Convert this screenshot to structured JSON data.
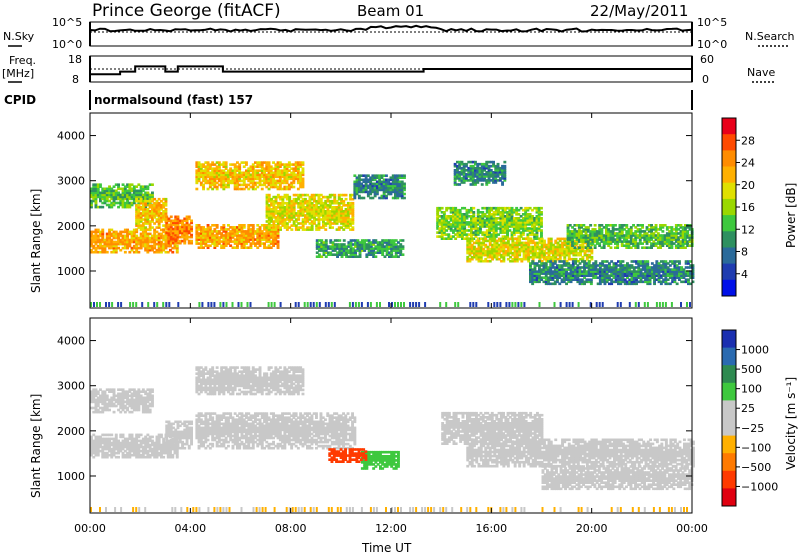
{
  "header": {
    "station": "Prince George (fitACF)",
    "beam": "Beam 01",
    "date": "22/May/2011"
  },
  "top_panels": {
    "nsky_label": "N.Sky",
    "nsearch_label": "N.Search",
    "freq_label": "Freq.",
    "freq_unit": "[MHz]",
    "nave_label": "Nave",
    "cpid_label": "CPID",
    "cpid_text": "normalsound (fast) 157",
    "noise_ticks": [
      "10^5",
      "10^0"
    ],
    "noise_right_ticks": [
      "10^5",
      "10^0"
    ],
    "freq_ticks": [
      "18",
      "8"
    ],
    "nave_ticks": [
      "60",
      "0"
    ]
  },
  "colorbars": {
    "power": {
      "title": "Power [dB]",
      "ticks": [
        "28",
        "24",
        "20",
        "16",
        "12",
        "8",
        "4"
      ],
      "colors": [
        "#e8001a",
        "#ff4a00",
        "#ff8c00",
        "#ffb000",
        "#e0e000",
        "#9ad800",
        "#3ec83e",
        "#2e9060",
        "#2a6a9a",
        "#1f3cb0",
        "#0010e8"
      ]
    },
    "velocity": {
      "title": "Velocity [m s⁻¹]",
      "ticks": [
        "1000",
        "500",
        "100",
        "25",
        "−25",
        "−100",
        "−500",
        "−1000"
      ],
      "colors": [
        "#1a2fb0",
        "#2a6ab0",
        "#2e8a50",
        "#3ec83e",
        "#c8c8c8",
        "#c8c8c8",
        "#ffb000",
        "#ff7a00",
        "#ff3a00",
        "#e00010"
      ]
    }
  },
  "chart_data": {
    "type": "heatmap",
    "xlabel": "Time UT",
    "ylabel": "Slant Range [km]",
    "x_ticks": [
      "00:00",
      "04:00",
      "08:00",
      "12:00",
      "16:00",
      "20:00",
      "00:00"
    ],
    "xlim_hours": [
      0,
      24
    ],
    "y_ticks": [
      "4000",
      "3000",
      "2000",
      "1000"
    ],
    "ylim_km": [
      180,
      4500
    ],
    "panels": [
      {
        "name": "power",
        "bands": [
          {
            "t0": 0.0,
            "t1": 3.5,
            "r0": 1400,
            "r1": 1900,
            "level": 22
          },
          {
            "t0": 0.0,
            "t1": 2.5,
            "r0": 2400,
            "r1": 2900,
            "level": 12
          },
          {
            "t0": 1.8,
            "t1": 3.0,
            "r0": 1900,
            "r1": 2600,
            "level": 20
          },
          {
            "t0": 3.0,
            "t1": 4.0,
            "r0": 1600,
            "r1": 2200,
            "level": 24
          },
          {
            "t0": 4.2,
            "t1": 7.5,
            "r0": 1500,
            "r1": 2000,
            "level": 22
          },
          {
            "t0": 4.2,
            "t1": 8.5,
            "r0": 2800,
            "r1": 3400,
            "level": 20
          },
          {
            "t0": 7.0,
            "t1": 10.5,
            "r0": 1900,
            "r1": 2700,
            "level": 18
          },
          {
            "t0": 9.0,
            "t1": 12.5,
            "r0": 1300,
            "r1": 1700,
            "level": 10
          },
          {
            "t0": 10.5,
            "t1": 12.5,
            "r0": 2600,
            "r1": 3100,
            "level": 8
          },
          {
            "t0": 13.8,
            "t1": 18.0,
            "r0": 1700,
            "r1": 2400,
            "level": 14
          },
          {
            "t0": 15.0,
            "t1": 20.0,
            "r0": 1200,
            "r1": 1700,
            "level": 18
          },
          {
            "t0": 19.0,
            "t1": 24.0,
            "r0": 1500,
            "r1": 2000,
            "level": 12
          },
          {
            "t0": 17.5,
            "t1": 24.0,
            "r0": 700,
            "r1": 1200,
            "level": 8
          },
          {
            "t0": 14.5,
            "t1": 16.5,
            "r0": 2900,
            "r1": 3400,
            "level": 8
          }
        ]
      },
      {
        "name": "velocity",
        "bands": [
          {
            "t0": 0.0,
            "t1": 3.5,
            "r0": 1400,
            "r1": 1900,
            "v": 0
          },
          {
            "t0": 0.0,
            "t1": 2.5,
            "r0": 2400,
            "r1": 2900,
            "v": 0
          },
          {
            "t0": 3.0,
            "t1": 4.0,
            "r0": 1600,
            "r1": 2200,
            "v": 0
          },
          {
            "t0": 4.2,
            "t1": 10.5,
            "r0": 1600,
            "r1": 2400,
            "v": 0
          },
          {
            "t0": 4.2,
            "t1": 8.5,
            "r0": 2800,
            "r1": 3400,
            "v": 0
          },
          {
            "t0": 10.8,
            "t1": 12.3,
            "r0": 1150,
            "r1": 1550,
            "v": 100
          },
          {
            "t0": 14.0,
            "t1": 18.0,
            "r0": 1700,
            "r1": 2400,
            "v": 0
          },
          {
            "t0": 15.0,
            "t1": 24.0,
            "r0": 1200,
            "r1": 1800,
            "v": 0
          },
          {
            "t0": 18.0,
            "t1": 24.0,
            "r0": 700,
            "r1": 1200,
            "v": 0
          },
          {
            "t0": 9.5,
            "t1": 11.0,
            "r0": 1300,
            "r1": 1600,
            "v": -300
          }
        ]
      }
    ],
    "freq_series_hours": [
      0,
      1.2,
      1.8,
      2.6,
      3.0,
      3.5,
      4.3,
      5.3,
      12.9,
      13.3,
      24
    ],
    "freq_series_mhz": [
      11,
      12,
      14,
      14,
      12,
      14,
      14,
      12,
      12,
      13,
      12
    ],
    "grid": false
  }
}
